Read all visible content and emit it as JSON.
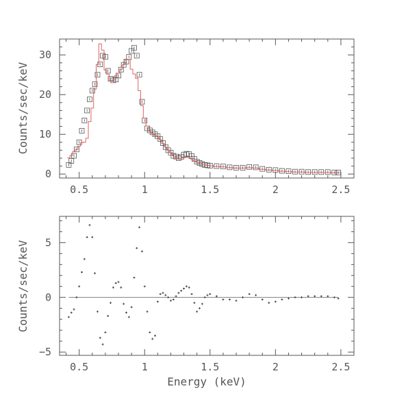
{
  "chart_data": [
    {
      "type": "scatter",
      "panel": "spectrum",
      "xlabel": "",
      "ylabel": "Counts/sec/keV",
      "xlim": [
        0.35,
        2.6
      ],
      "ylim": [
        -1,
        34
      ],
      "xticks": [
        0.5,
        1,
        1.5,
        2,
        2.5
      ],
      "xtick_labels": [
        "0.5",
        "1",
        "1.5",
        "2",
        "2.5"
      ],
      "yticks": [
        0,
        10,
        20,
        30
      ],
      "ytick_labels": [
        "0",
        "10",
        "20",
        "30"
      ],
      "grid": false,
      "series": [
        {
          "style": "open-squares",
          "x": [
            0.42,
            0.44,
            0.46,
            0.48,
            0.5,
            0.52,
            0.54,
            0.56,
            0.58,
            0.6,
            0.62,
            0.64,
            0.66,
            0.68,
            0.7,
            0.72,
            0.74,
            0.76,
            0.78,
            0.8,
            0.82,
            0.84,
            0.86,
            0.88,
            0.9,
            0.92,
            0.94,
            0.96,
            0.98,
            1.0,
            1.02,
            1.04,
            1.06,
            1.08,
            1.1,
            1.12,
            1.14,
            1.16,
            1.18,
            1.2,
            1.22,
            1.24,
            1.26,
            1.28,
            1.3,
            1.32,
            1.34,
            1.36,
            1.38,
            1.4,
            1.42,
            1.44,
            1.46,
            1.48,
            1.5,
            1.55,
            1.6,
            1.65,
            1.7,
            1.75,
            1.8,
            1.85,
            1.9,
            1.95,
            2.0,
            2.05,
            2.1,
            2.15,
            2.2,
            2.25,
            2.3,
            2.35,
            2.4,
            2.45,
            2.48
          ],
          "y": [
            2.3,
            3.3,
            4.6,
            6.2,
            8.0,
            10.9,
            13.5,
            16.0,
            18.8,
            21.0,
            22.6,
            25.0,
            27.6,
            29.8,
            29.5,
            26.0,
            24.0,
            23.6,
            23.8,
            24.8,
            26.3,
            27.5,
            28.3,
            29.5,
            31.0,
            31.8,
            29.8,
            25.0,
            18.2,
            13.5,
            11.5,
            11.0,
            10.5,
            10.0,
            9.5,
            8.8,
            7.8,
            6.8,
            6.0,
            5.4,
            4.6,
            4.4,
            4.0,
            4.3,
            4.9,
            5.1,
            5.0,
            4.5,
            3.8,
            3.1,
            2.8,
            2.5,
            2.3,
            2.2,
            2.1,
            2.0,
            1.9,
            1.7,
            1.6,
            1.6,
            1.8,
            1.7,
            1.3,
            1.1,
            1.0,
            0.8,
            0.7,
            0.6,
            0.6,
            0.5,
            0.5,
            0.5,
            0.5,
            0.4,
            0.4
          ]
        },
        {
          "style": "step-line",
          "x": [
            0.42,
            0.44,
            0.46,
            0.48,
            0.5,
            0.52,
            0.54,
            0.56,
            0.58,
            0.6,
            0.62,
            0.64,
            0.66,
            0.68,
            0.7,
            0.72,
            0.74,
            0.76,
            0.78,
            0.8,
            0.82,
            0.84,
            0.86,
            0.88,
            0.9,
            0.92,
            0.94,
            0.96,
            0.98,
            1.0,
            1.02,
            1.04,
            1.06,
            1.08,
            1.1,
            1.12,
            1.14,
            1.16,
            1.18,
            1.2,
            1.22,
            1.24,
            1.26,
            1.28,
            1.3,
            1.32,
            1.34,
            1.36,
            1.38,
            1.4,
            1.42,
            1.44,
            1.46,
            1.48,
            1.5,
            1.55,
            1.6,
            1.65,
            1.7,
            1.75,
            1.8,
            1.85,
            1.9,
            1.95,
            2.0,
            2.05,
            2.1,
            2.15,
            2.2,
            2.25,
            2.3,
            2.35,
            2.4,
            2.45,
            2.48
          ],
          "y": [
            4.1,
            4.7,
            5.7,
            6.2,
            7.0,
            7.9,
            8.0,
            9.0,
            13.2,
            16.6,
            21.4,
            27.6,
            32.8,
            31.2,
            26.2,
            25.1,
            23.5,
            23.6,
            24.8,
            25.4,
            26.4,
            27.6,
            28.8,
            28.9,
            26.4,
            25.2,
            24.1,
            21.0,
            17.2,
            14.1,
            12.1,
            10.8,
            10.2,
            9.7,
            9.5,
            8.6,
            7.7,
            6.8,
            6.0,
            5.4,
            4.6,
            4.3,
            4.0,
            4.0,
            4.1,
            4.2,
            4.1,
            3.8,
            3.3,
            3.0,
            2.8,
            2.5,
            2.3,
            2.2,
            2.1,
            1.9,
            1.8,
            1.6,
            1.5,
            1.5,
            1.6,
            1.5,
            1.2,
            1.0,
            0.9,
            0.7,
            0.6,
            0.5,
            0.5,
            0.4,
            0.4,
            0.4,
            0.4,
            0.3,
            0.3
          ]
        }
      ]
    },
    {
      "type": "scatter",
      "panel": "residuals",
      "xlabel": "Energy (keV)",
      "ylabel": "Counts/sec/keV",
      "xlim": [
        0.35,
        2.6
      ],
      "ylim": [
        -5.3,
        7.4
      ],
      "xticks": [
        0.5,
        1,
        1.5,
        2,
        2.5
      ],
      "xtick_labels": [
        "0.5",
        "1",
        "1.5",
        "2",
        "2.5"
      ],
      "yticks": [
        -5,
        0,
        5
      ],
      "ytick_labels": [
        "−5",
        "0",
        "5"
      ],
      "grid": false,
      "zero_line": true,
      "series": [
        {
          "style": "crosses",
          "x": [
            0.42,
            0.44,
            0.46,
            0.48,
            0.5,
            0.52,
            0.54,
            0.56,
            0.58,
            0.6,
            0.62,
            0.64,
            0.66,
            0.68,
            0.7,
            0.72,
            0.74,
            0.76,
            0.78,
            0.8,
            0.82,
            0.84,
            0.86,
            0.88,
            0.9,
            0.92,
            0.94,
            0.96,
            0.98,
            1.0,
            1.02,
            1.04,
            1.06,
            1.08,
            1.1,
            1.12,
            1.14,
            1.16,
            1.18,
            1.2,
            1.22,
            1.24,
            1.26,
            1.28,
            1.3,
            1.32,
            1.34,
            1.36,
            1.38,
            1.4,
            1.42,
            1.44,
            1.46,
            1.48,
            1.5,
            1.55,
            1.6,
            1.65,
            1.7,
            1.75,
            1.8,
            1.85,
            1.9,
            1.95,
            2.0,
            2.05,
            2.1,
            2.15,
            2.2,
            2.25,
            2.3,
            2.35,
            2.4,
            2.45,
            2.48
          ],
          "y": [
            -1.8,
            -1.4,
            -1.1,
            0.0,
            1.0,
            2.3,
            3.5,
            5.5,
            6.6,
            5.5,
            2.2,
            -1.3,
            -3.7,
            -4.3,
            -3.2,
            -1.7,
            -0.5,
            0.9,
            1.3,
            1.4,
            0.9,
            -0.6,
            -1.4,
            -1.8,
            -0.9,
            1.8,
            4.5,
            6.4,
            4.2,
            1.0,
            -1.3,
            -3.2,
            -3.8,
            -3.5,
            -0.4,
            0.3,
            0.4,
            0.2,
            0.0,
            -0.3,
            -0.2,
            0.1,
            0.4,
            0.6,
            0.8,
            1.0,
            0.9,
            0.3,
            -0.5,
            -1.3,
            -1.0,
            -0.6,
            0.0,
            0.2,
            0.3,
            0.1,
            -0.2,
            -0.2,
            -0.3,
            0.0,
            0.3,
            0.2,
            -0.2,
            -0.5,
            -0.4,
            -0.2,
            -0.1,
            0.0,
            0.0,
            0.1,
            0.1,
            0.1,
            0.1,
            0.0,
            -0.1
          ]
        }
      ]
    }
  ]
}
